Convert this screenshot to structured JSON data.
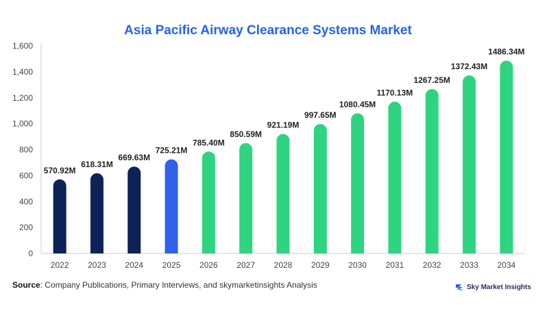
{
  "chart_data": {
    "type": "bar",
    "title": "Asia Pacific Airway Clearance Systems Market",
    "categories": [
      "2022",
      "2023",
      "2024",
      "2025",
      "2026",
      "2027",
      "2028",
      "2029",
      "2030",
      "2031",
      "2032",
      "2033",
      "2034"
    ],
    "values": [
      570.92,
      618.31,
      669.63,
      725.21,
      785.4,
      850.59,
      921.19,
      997.65,
      1080.45,
      1170.13,
      1267.25,
      1372.43,
      1486.34
    ],
    "value_labels": [
      "570.92M",
      "618.31M",
      "669.63M",
      "725.21M",
      "785.40M",
      "850.59M",
      "921.19M",
      "997.65M",
      "1080.45M",
      "1170.13M",
      "1267.25M",
      "1372.43M",
      "1486.34M"
    ],
    "bar_colors": [
      "#0d2358",
      "#0d2358",
      "#0d2358",
      "#2f62e8",
      "#2ed47f",
      "#2ed47f",
      "#2ed47f",
      "#2ed47f",
      "#2ed47f",
      "#2ed47f",
      "#2ed47f",
      "#2ed47f",
      "#2ed47f"
    ],
    "y_ticks": [
      0,
      200,
      400,
      600,
      800,
      1000,
      1200,
      1400,
      1600
    ],
    "y_tick_labels": [
      "0",
      "200",
      "400",
      "600",
      "800",
      "1,000",
      "1,200",
      "1,400",
      "1,600"
    ],
    "ylim": [
      0,
      1600
    ],
    "xlabel": "",
    "ylabel": "",
    "grid": false,
    "legend": "none"
  },
  "footer": {
    "source_label": "Source",
    "source_text": ": Company Publications, Primary Interviews, and skymarketinsights Analysis",
    "brand": "Sky Market Insights"
  },
  "colors": {
    "title": "#2563eb",
    "axis": "#cccccc",
    "brand_accent": "#2f62e8",
    "brand_green": "#2ed47f"
  }
}
